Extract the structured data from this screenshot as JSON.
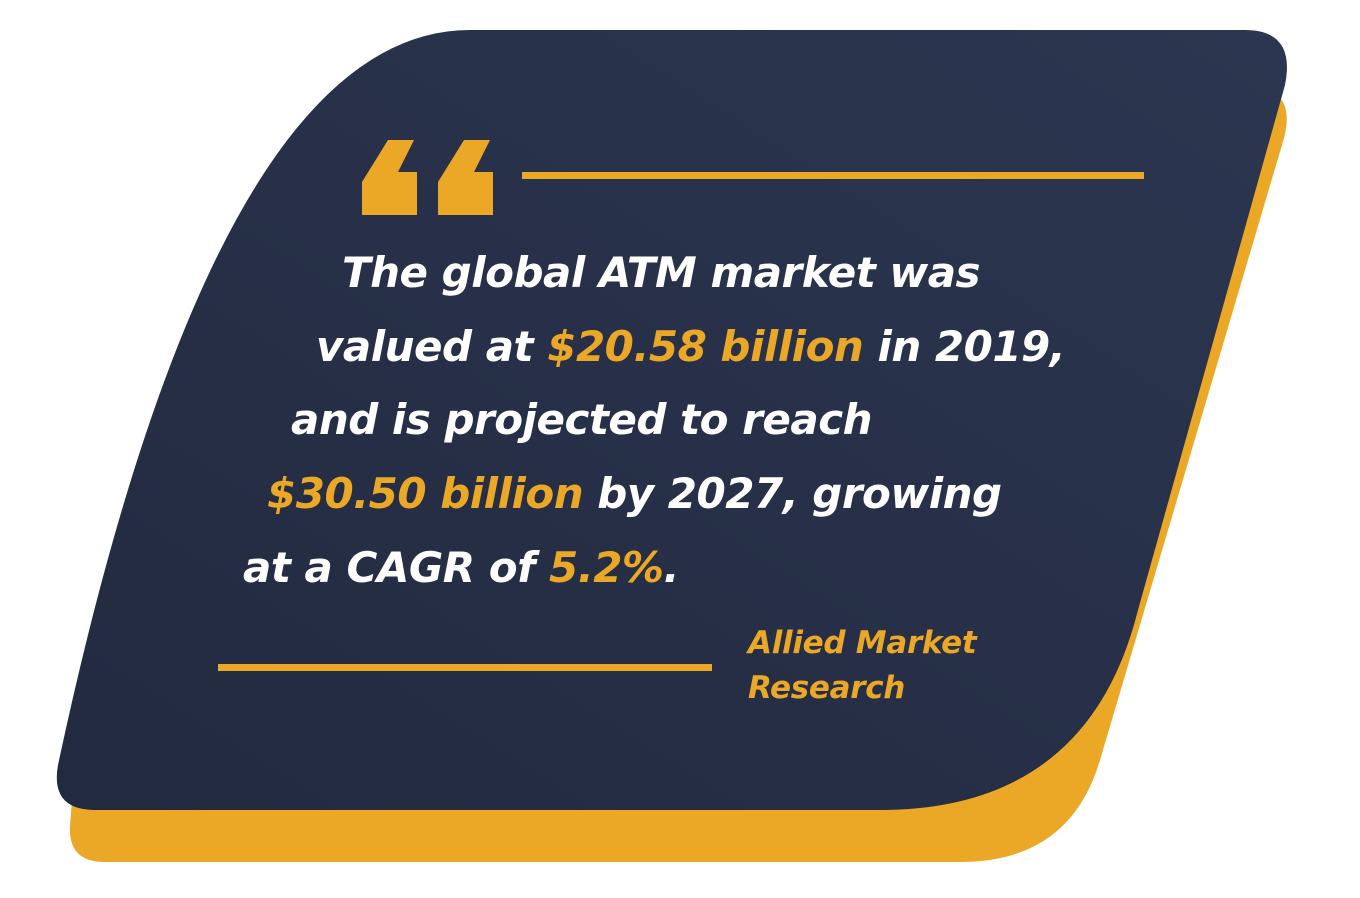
{
  "colors": {
    "card_background": "#26304a",
    "accent": "#eba826",
    "text": "#ffffff"
  },
  "quote_mark_icon": "double-quote-icon",
  "quote": {
    "line1": {
      "t1": "The global ATM market was"
    },
    "line2": {
      "t1": "valued at ",
      "h1": "$20.58 billion",
      "t2": " in 2019,"
    },
    "line3": {
      "t1": "and is projected to reach"
    },
    "line4": {
      "h1": "$30.50 billion",
      "t1": " by 2027, growing"
    },
    "line5": {
      "t1": "at a CAGR of ",
      "h1": "5.2%",
      "t2": "."
    }
  },
  "attribution": {
    "line1": "Allied Market",
    "line2": "Research"
  }
}
